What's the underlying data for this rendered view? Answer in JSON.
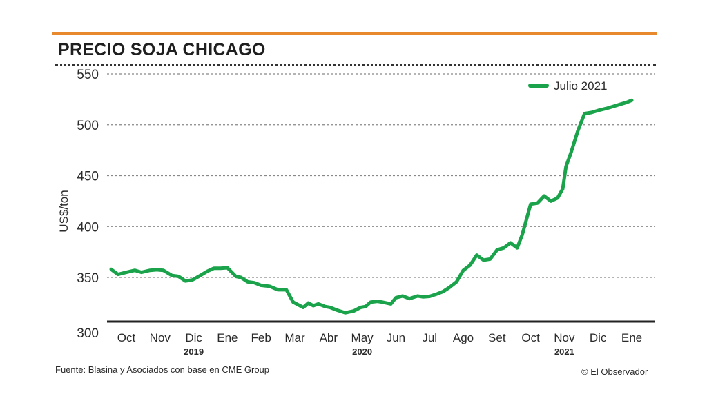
{
  "header": {
    "title": "PRECIO SOJA CHICAGO"
  },
  "footer": {
    "source": "Fuente: Blasina y Asociados con base en CME Group",
    "credit": "© El Observador"
  },
  "colors": {
    "accent": "#e8892e",
    "series": "#1aa34a",
    "grid": "#888888",
    "axis": "#2a2a2a"
  },
  "chart_data": {
    "type": "line",
    "title": "PRECIO SOJA CHICAGO",
    "ylabel": "US$/ton",
    "xlabel": "",
    "ylim": [
      300,
      550
    ],
    "yticks": [
      300,
      350,
      400,
      450,
      500,
      550
    ],
    "grid": true,
    "legend_position": "top-right",
    "x_ticks": [
      "Oct",
      "Nov",
      "Dic",
      "Ene",
      "Feb",
      "Mar",
      "Abr",
      "May",
      "Jun",
      "Jul",
      "Ago",
      "Set",
      "Oct",
      "Nov",
      "Dic",
      "Ene"
    ],
    "year_labels": [
      {
        "label": "2019",
        "at_tick": 2
      },
      {
        "label": "2020",
        "at_tick": 7
      },
      {
        "label": "2021",
        "at_tick": 13
      }
    ],
    "series": [
      {
        "name": "Julio 2021",
        "x": [
          -0.45,
          -0.25,
          0,
          0.25,
          0.45,
          0.7,
          0.9,
          1.1,
          1.35,
          1.55,
          1.75,
          1.95,
          2.15,
          2.4,
          2.6,
          2.8,
          3,
          3.25,
          3.4,
          3.6,
          3.8,
          4,
          4.25,
          4.5,
          4.75,
          4.95,
          5.25,
          5.4,
          5.55,
          5.7,
          5.9,
          6.05,
          6.25,
          6.5,
          6.75,
          6.95,
          7.1,
          7.25,
          7.45,
          7.6,
          7.85,
          8,
          8.2,
          8.4,
          8.65,
          8.8,
          9,
          9.2,
          9.4,
          9.6,
          9.8,
          10,
          10.2,
          10.4,
          10.6,
          10.8,
          11,
          11.2,
          11.4,
          11.6,
          11.75,
          12,
          12.2,
          12.4,
          12.6,
          12.8,
          12.95,
          13.05,
          13.2,
          13.4,
          13.6,
          13.8,
          14,
          14.25,
          14.45,
          14.65,
          14.85,
          15
        ],
        "values": [
          358,
          353,
          355,
          357,
          355,
          357,
          357.5,
          357,
          352,
          351,
          346,
          347,
          351,
          356,
          359,
          359,
          359.5,
          351,
          350,
          345,
          344,
          341,
          340,
          336,
          336,
          322,
          316,
          321,
          318,
          320,
          317,
          316,
          313,
          310,
          312,
          316,
          317,
          322,
          323,
          322,
          320,
          327,
          329,
          326,
          329,
          328,
          328.5,
          331,
          334,
          339,
          345,
          357,
          362,
          372,
          367,
          368,
          377,
          379,
          384,
          379,
          392,
          422,
          423,
          430,
          425,
          428,
          437,
          459,
          473,
          494,
          511,
          512,
          514,
          516,
          518,
          520,
          522,
          524
        ]
      }
    ]
  }
}
